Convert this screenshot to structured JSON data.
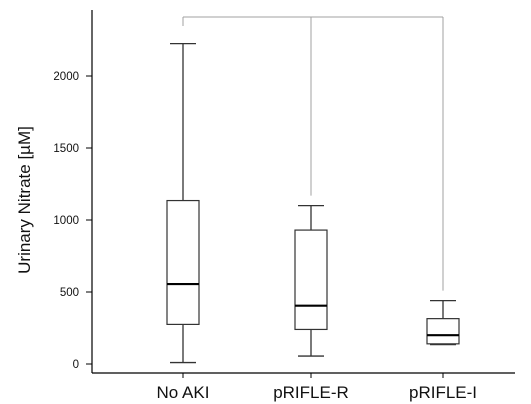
{
  "chart_data": {
    "type": "box",
    "ylabel": "Urinary  Nitrate [µM]",
    "ylim": [
      0,
      2300
    ],
    "yticks": [
      0,
      500,
      1000,
      1500,
      2000
    ],
    "categories": [
      "No AKI",
      "pRIFLE-R",
      "pRIFLE-I"
    ],
    "boxes": [
      {
        "category": "No AKI",
        "min": 10,
        "q1": 275,
        "median": 555,
        "q3": 1135,
        "max": 2225
      },
      {
        "category": "pRIFLE-R",
        "min": 55,
        "q1": 240,
        "median": 405,
        "q3": 930,
        "max": 1100
      },
      {
        "category": "pRIFLE-I",
        "min": 135,
        "q1": 140,
        "median": 200,
        "q3": 315,
        "max": 440
      }
    ],
    "comparison_bracket": {
      "from": "No AKI",
      "to": [
        "pRIFLE-R",
        "pRIFLE-I"
      ]
    },
    "grid": false,
    "legend": "none"
  }
}
